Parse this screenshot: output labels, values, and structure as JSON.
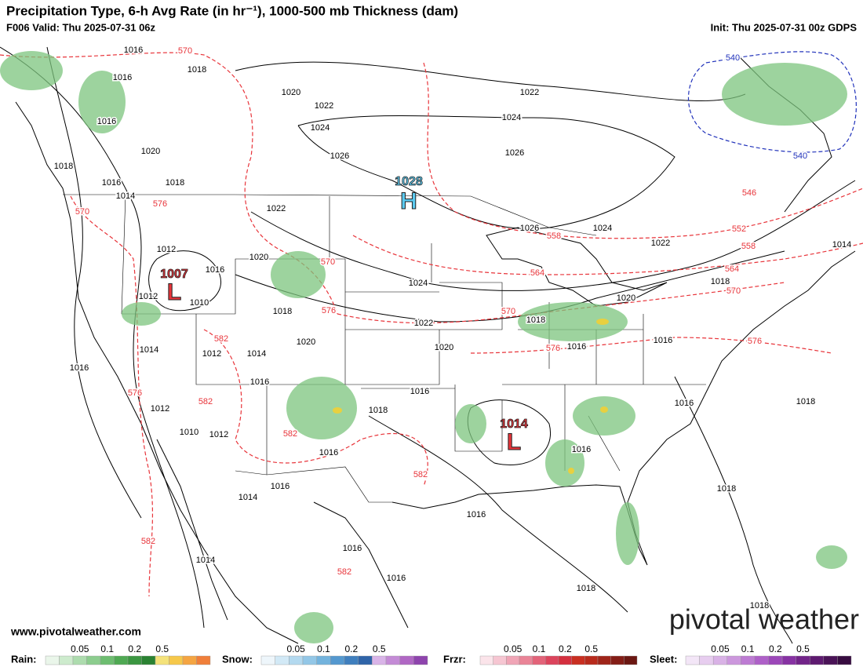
{
  "header": {
    "title": "Precipitation Type, 6-h Avg Rate (in hr⁻¹), 1000-500 mb Thickness (dam)",
    "valid": "F006 Valid: Thu 2025-07-31 06z",
    "init": "Init: Thu 2025-07-31 00z GDPS"
  },
  "pressure_centers": [
    {
      "letter": "H",
      "value": "1028"
    },
    {
      "letter": "L",
      "value": "1007"
    },
    {
      "letter": "L",
      "value": "1014"
    }
  ],
  "isobar_labels": [
    "1016",
    "1016",
    "1018",
    "1016",
    "1020",
    "1018",
    "1016",
    "1018",
    "1014",
    "1020",
    "1022",
    "1024",
    "1022",
    "1024",
    "1026",
    "1026",
    "1022",
    "1026",
    "1024",
    "1022",
    "1012",
    "1016",
    "1020",
    "1012",
    "1010",
    "1018",
    "1024",
    "1022",
    "1018",
    "1016",
    "1020",
    "1018",
    "1014",
    "1012",
    "1014",
    "1020",
    "1014",
    "1016",
    "1020",
    "1016",
    "1016",
    "1016",
    "1018",
    "1012",
    "1010",
    "1012",
    "1016",
    "1016",
    "1016",
    "1018",
    "1014",
    "1016",
    "1016",
    "1018",
    "1014",
    "1016",
    "1016",
    "1018",
    "1018"
  ],
  "thickness_labels": [
    "570",
    "570",
    "576",
    "570",
    "576",
    "582",
    "576",
    "582",
    "582",
    "582",
    "582",
    "582",
    "570",
    "576",
    "564",
    "558",
    "552",
    "546",
    "558",
    "564",
    "570",
    "576",
    "540",
    "540"
  ],
  "website": "www.pivotalweather.com",
  "watermark": "pivotal weather",
  "legend": [
    {
      "label": "Rain:",
      "ticks": [
        "0.05",
        "0.1",
        "0.2",
        "0.5"
      ]
    },
    {
      "label": "Snow:",
      "ticks": [
        "0.05",
        "0.1",
        "0.2",
        "0.5"
      ]
    },
    {
      "label": "Frzr:",
      "ticks": [
        "0.05",
        "0.1",
        "0.2",
        "0.5"
      ]
    },
    {
      "label": "Sleet:",
      "ticks": [
        "0.05",
        "0.1",
        "0.2",
        "0.5"
      ]
    }
  ]
}
